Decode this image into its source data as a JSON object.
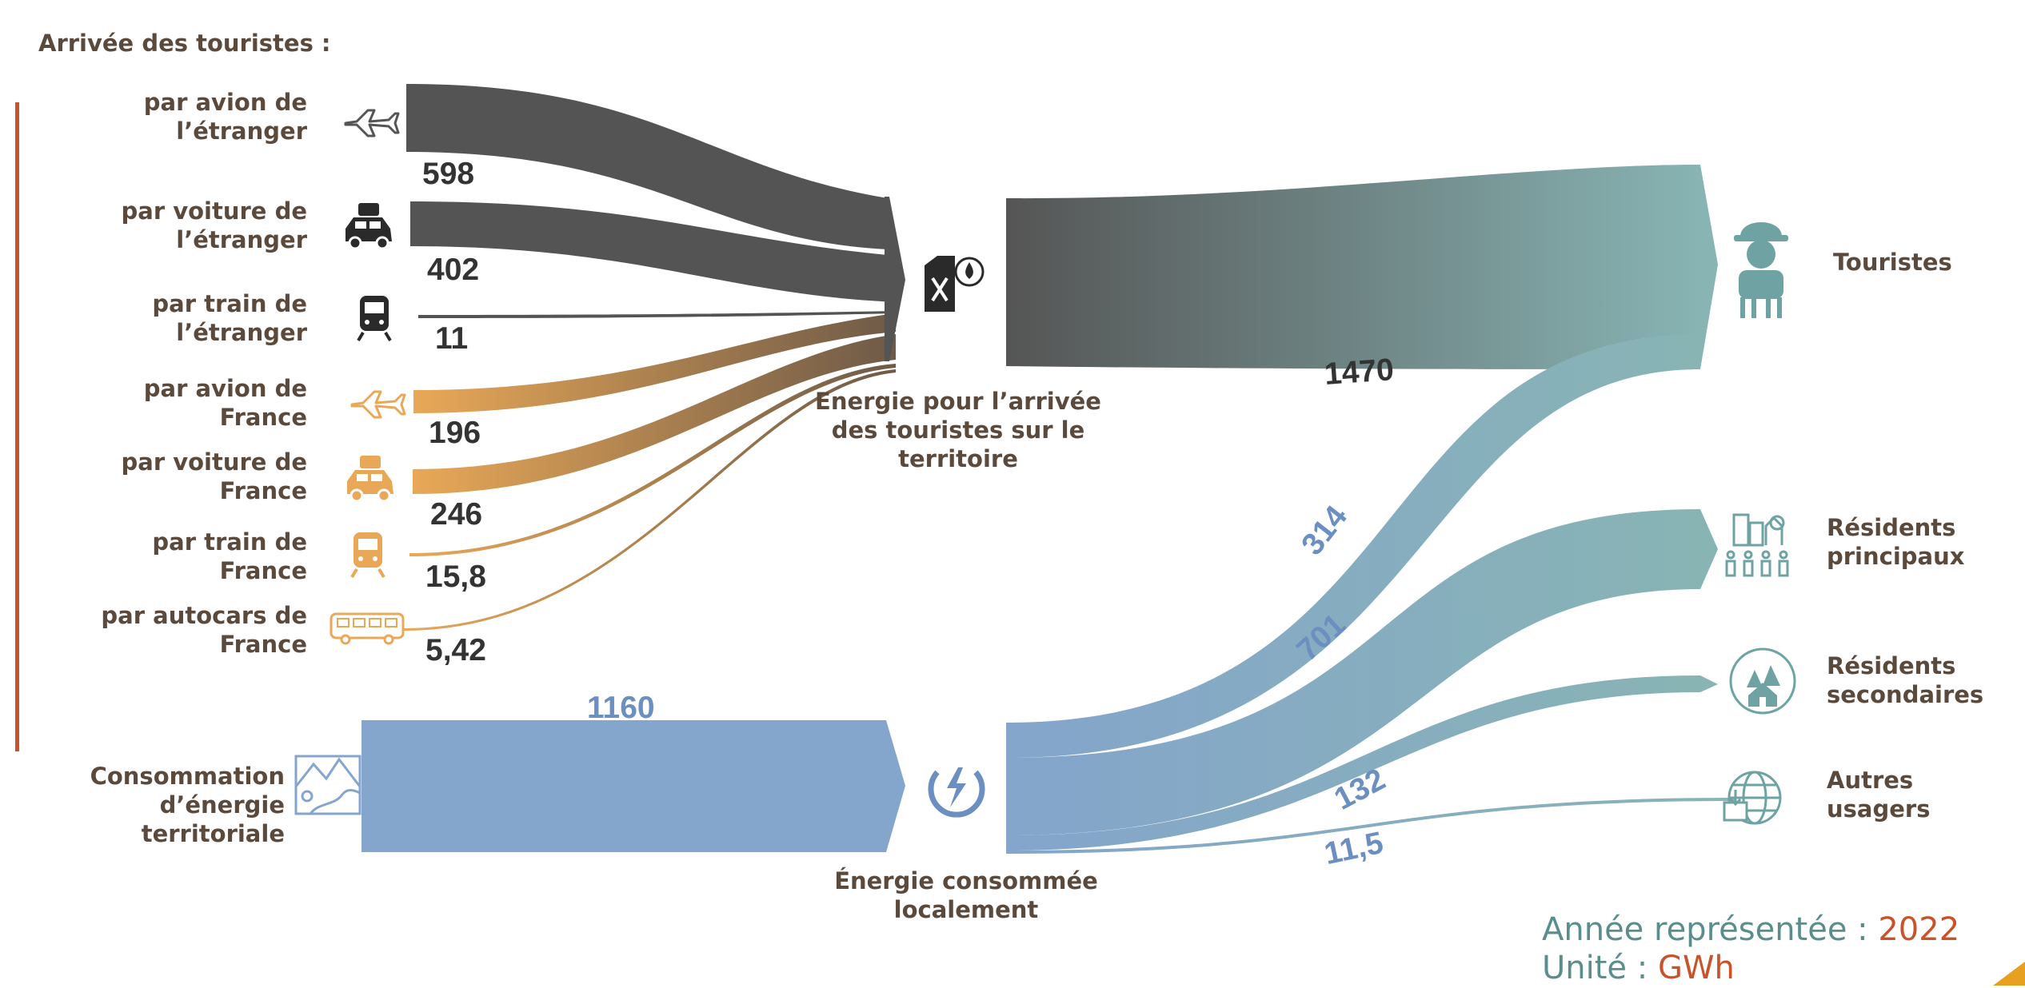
{
  "header": "Arrivée des touristes :",
  "sources": [
    {
      "label": "par avion de\nl’étranger",
      "value": "598",
      "icon": "airplane-icon"
    },
    {
      "label": "par voiture de\nl’étranger",
      "value": "402",
      "icon": "car-icon"
    },
    {
      "label": "par train de\nl’étranger",
      "value": "11",
      "icon": "train-icon"
    },
    {
      "label": "par avion de\nFrance",
      "value": "196",
      "icon": "airplane-icon"
    },
    {
      "label": "par voiture de\nFrance",
      "value": "246",
      "icon": "car-icon"
    },
    {
      "label": "par train de\nFrance",
      "value": "15,8",
      "icon": "train-icon"
    },
    {
      "label": "par autocars de\nFrance",
      "value": "5,42",
      "icon": "bus-icon"
    }
  ],
  "territorial": {
    "label": "Consommation\nd’énergie territoriale",
    "value": "1160",
    "icon": "landscape-icon"
  },
  "hubs": {
    "arrival": {
      "label": "Energie pour l’arrivée\ndes touristes sur le\nterritoire",
      "icon": "fuel-can-icon"
    },
    "local": {
      "label": "Énergie consommée\nlocalement",
      "icon": "energy-icon"
    }
  },
  "flows": {
    "tourists_arrival": "1470",
    "tourists_local": "314",
    "main_residents": "701",
    "secondary_residents": "132",
    "other_users": "11,5"
  },
  "targets": [
    {
      "label": "Touristes",
      "icon": "tourist-icon"
    },
    {
      "label": "Résidents\nprincipaux",
      "icon": "residents-icon"
    },
    {
      "label": "Résidents\nsecondaires",
      "icon": "cabin-icon"
    },
    {
      "label": "Autres\nusagers",
      "icon": "globe-icon"
    }
  ],
  "legend": {
    "year_label": "Année représentée : ",
    "year": "2022",
    "unit_label": "Unité : ",
    "unit": "GWh"
  },
  "colors": {
    "foreign": "#545454",
    "france": "#e9a857",
    "local": "#84a5cc",
    "teal": "#88b4b4",
    "text": "#5b4a3c",
    "accent": "#c8532b",
    "gold": "#e8a020"
  }
}
